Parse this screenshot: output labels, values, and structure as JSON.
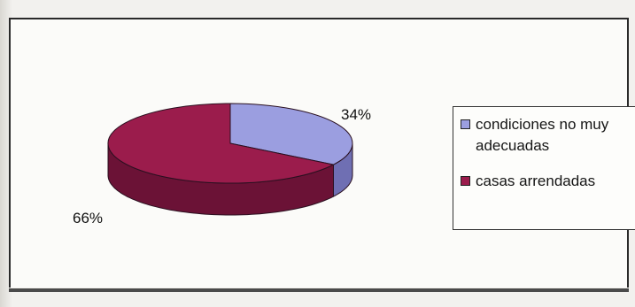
{
  "chart_data": {
    "type": "pie",
    "style": "3d",
    "slices": [
      {
        "label": "condiciones no muy adecuadas",
        "value": 34,
        "value_label": "34%",
        "color": "#9b9ee0"
      },
      {
        "label": "casas arrendadas",
        "value": 66,
        "value_label": "66%",
        "color": "#9b1c4c"
      }
    ],
    "legend_placement": "right"
  },
  "colors": {
    "slice_blue_side": "#6f6fb3",
    "slice_red_side": "#6b1236",
    "frame": "#2a2a2a"
  }
}
